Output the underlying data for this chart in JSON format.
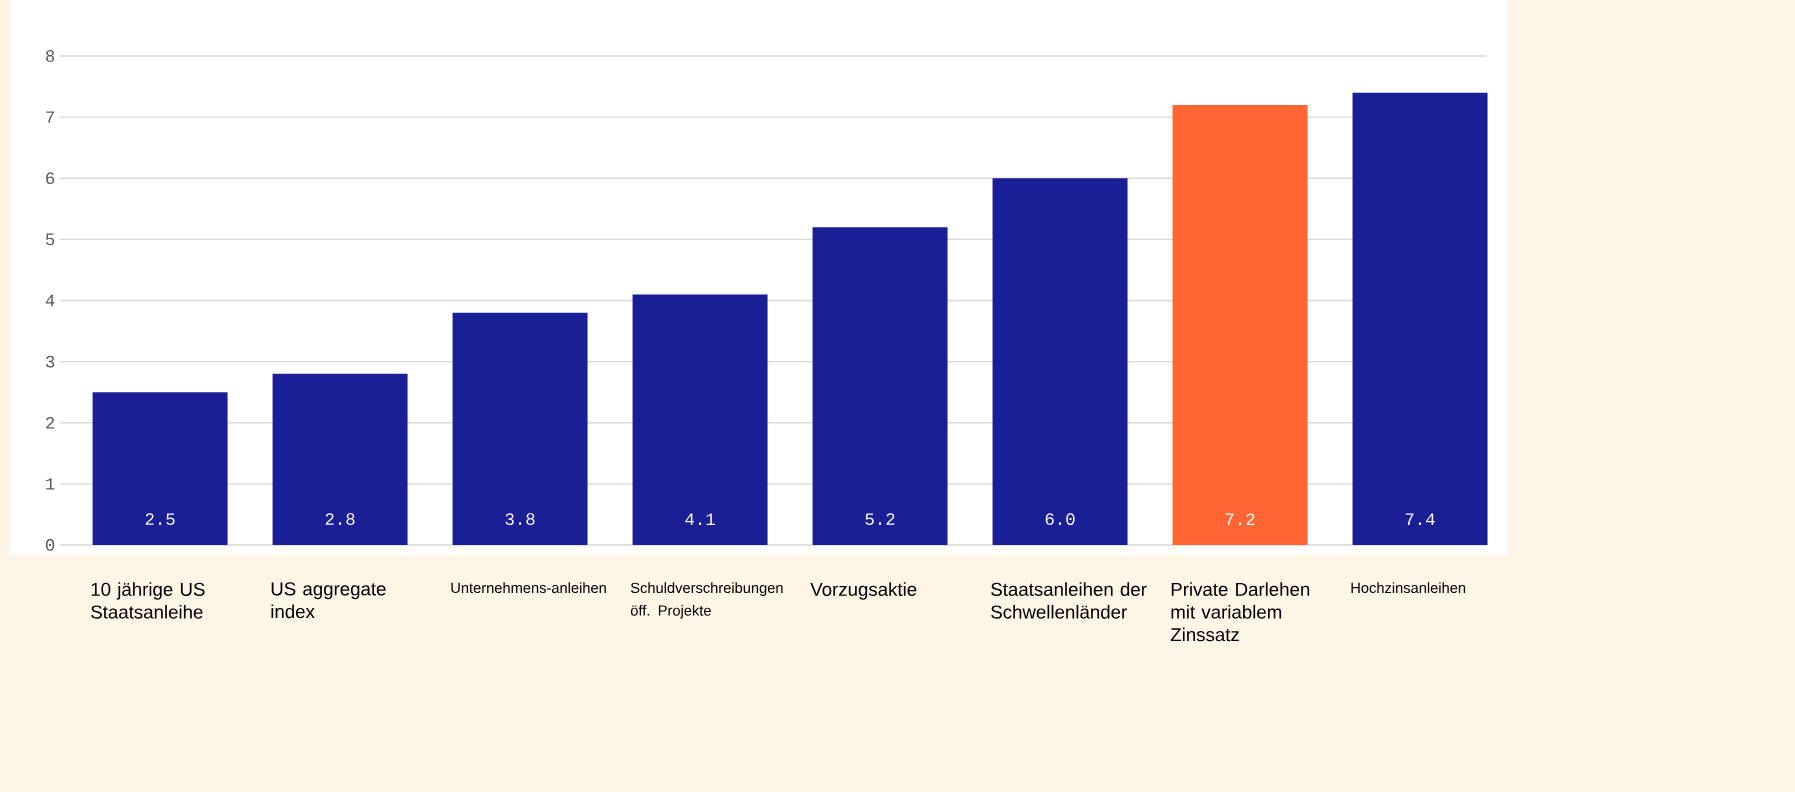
{
  "chart_data": {
    "type": "bar",
    "categories": [
      "10 jährige US Staatsanleihe",
      "US aggregate index",
      "Unternehmens-anleihen",
      "Schuldverschreibungen öff. Projekte",
      "Vorzugsaktie",
      "Staatsanleihen der Schwellenländer",
      "Private Darlehen mit variablem Zinssatz",
      "Hochzinsanleihen"
    ],
    "values": [
      2.5,
      2.8,
      3.8,
      4.1,
      5.2,
      6.0,
      7.2,
      7.4
    ],
    "colors": [
      "#1a1f96",
      "#1a1f96",
      "#1a1f96",
      "#1a1f96",
      "#1a1f96",
      "#1a1f96",
      "#ff6633",
      "#1a1f96"
    ],
    "ylim": [
      0,
      8
    ],
    "yticks": [
      0,
      1,
      2,
      3,
      4,
      5,
      6,
      7,
      8
    ],
    "value_labels": [
      "2.5",
      "2.8",
      "3.8",
      "4.1",
      "5.2",
      "6.0",
      "7.2",
      "7.4"
    ],
    "grid": "y"
  }
}
